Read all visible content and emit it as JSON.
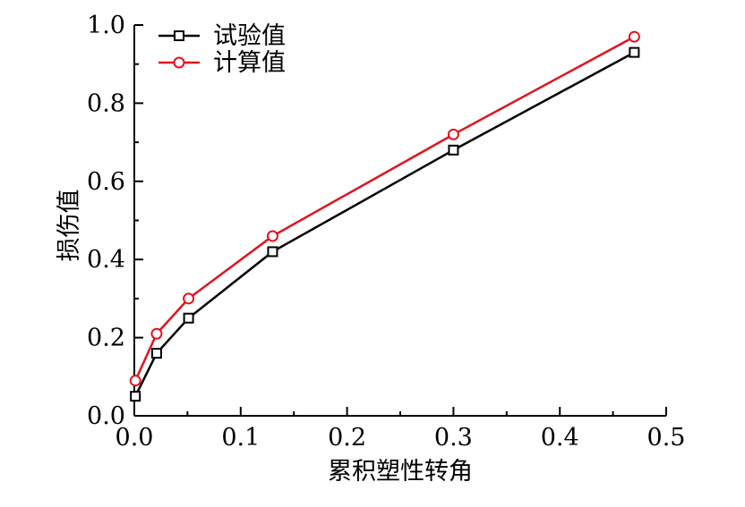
{
  "chart_data": {
    "type": "line",
    "title": "",
    "xlabel": "累积塑性转角",
    "ylabel": "损伤值",
    "xlim": [
      0.0,
      0.5
    ],
    "ylim": [
      0.0,
      1.0
    ],
    "x_ticks": [
      0.0,
      0.1,
      0.2,
      0.3,
      0.4,
      0.5
    ],
    "y_ticks": [
      0.0,
      0.2,
      0.4,
      0.6,
      0.8,
      1.0
    ],
    "x_tick_labels": [
      "0.0",
      "0.1",
      "0.2",
      "0.3",
      "0.4",
      "0.5"
    ],
    "y_tick_labels": [
      "0.0",
      "0.2",
      "0.4",
      "0.6",
      "0.8",
      "1.0"
    ],
    "grid": false,
    "legend_position": "top-left",
    "series": [
      {
        "name": "试验值",
        "color": "#000000",
        "marker": "square",
        "x": [
          0.001,
          0.021,
          0.051,
          0.13,
          0.3,
          0.47
        ],
        "y": [
          0.05,
          0.16,
          0.25,
          0.42,
          0.68,
          0.93
        ]
      },
      {
        "name": "计算值",
        "color": "#e0141e",
        "marker": "circle",
        "x": [
          0.001,
          0.021,
          0.051,
          0.13,
          0.3,
          0.47
        ],
        "y": [
          0.09,
          0.21,
          0.3,
          0.46,
          0.72,
          0.97
        ]
      }
    ]
  }
}
